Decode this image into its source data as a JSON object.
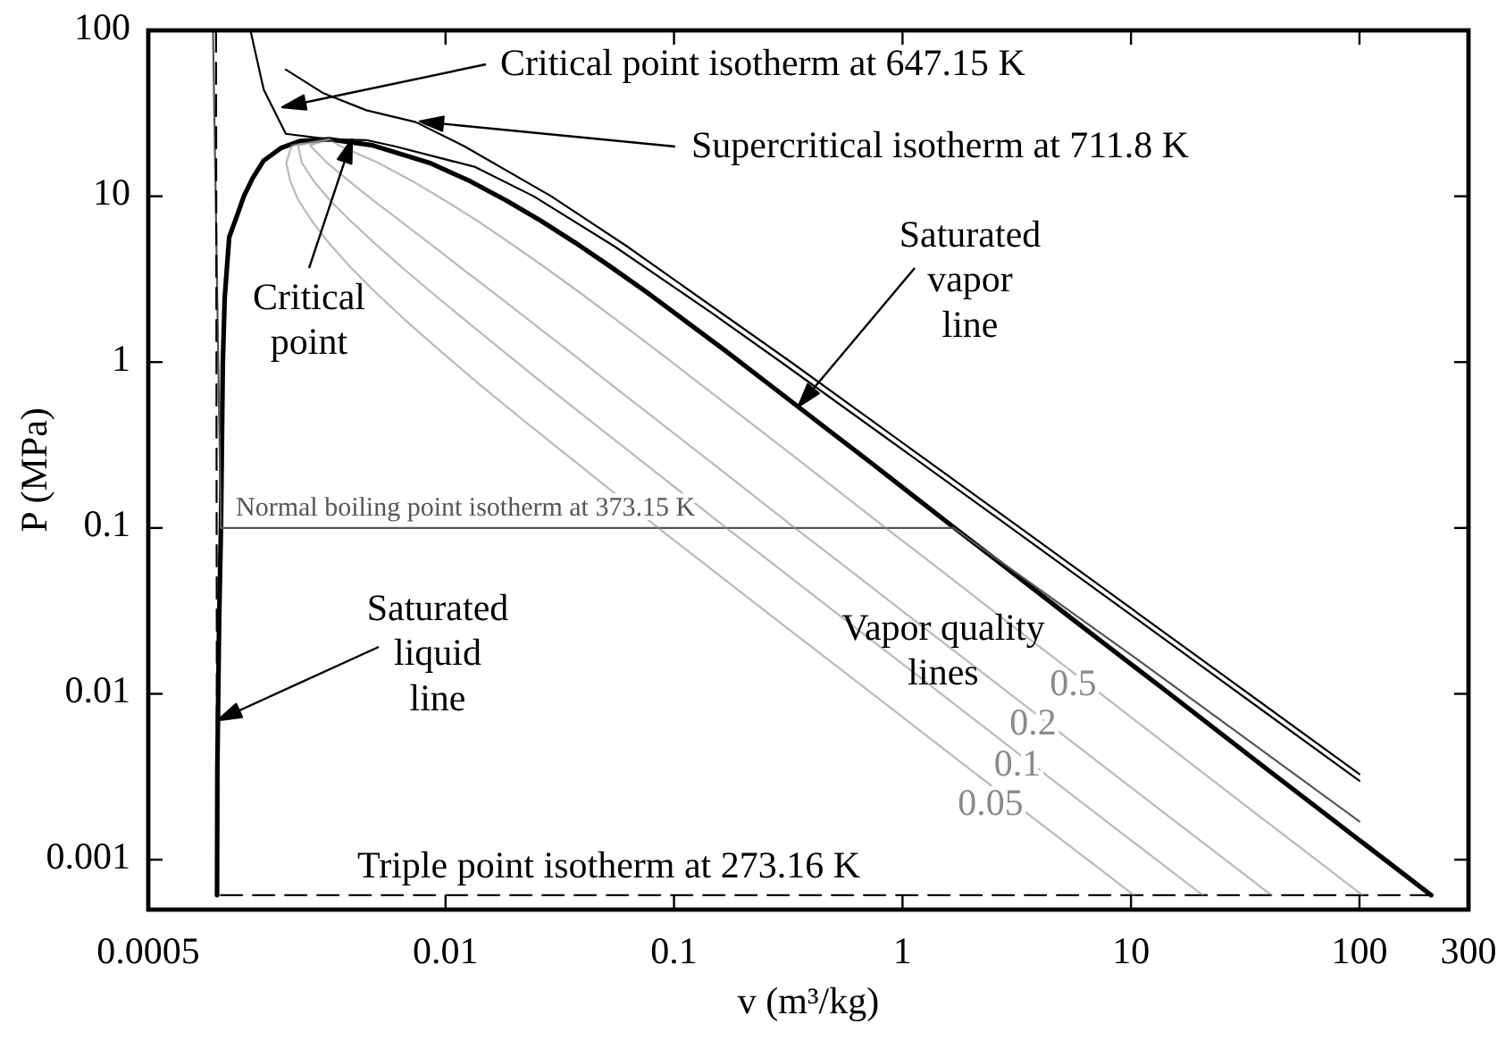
{
  "chart_data": {
    "type": "line",
    "xlabel": "v (m³/kg)",
    "ylabel": "P (MPa)",
    "log": "xy",
    "grid": false,
    "xlim": [
      0.0005,
      300
    ],
    "ylim": [
      0.0005,
      100
    ],
    "xticks": [
      0.0005,
      0.01,
      0.1,
      1,
      10,
      100,
      300
    ],
    "yticks": [
      0.001,
      0.01,
      0.1,
      1,
      10,
      100
    ],
    "series": [
      {
        "color": "#000000",
        "x": [
          0.001,
          0.001003,
          0.001021,
          0.00104,
          0.00106,
          0.00108,
          0.00113,
          0.00123,
          0.00131,
          0.00143,
          0.0016,
          0.0019,
          0.0023,
          0.0031,
          0.0048,
          0.0085,
          0.0128,
          0.0184,
          0.0262,
          0.037,
          0.0526,
          0.0758,
          0.111,
          0.168,
          0.261,
          0.425,
          0.731,
          1.673,
          2.645,
          5.74,
          13.98,
          39.1,
          69.7,
          130.4,
          206
        ],
        "values": [
          0.000611,
          0.00354,
          0.0272,
          0.1,
          1,
          2.44,
          5.66,
          7.8,
          10,
          12.8,
          16.4,
          19.5,
          21.5,
          22.06,
          20.27,
          15.9,
          12.34,
          9.45,
          7.1,
          5.24,
          3.77,
          2.64,
          1.79,
          1.17,
          0.733,
          0.437,
          0.246,
          0.101,
          0.0622,
          0.0272,
          0.0106,
          0.00354,
          0.00192,
          0.00099,
          0.000611
        ]
      },
      {
        "color": "#000000",
        "x": [
          0.0014,
          0.0016,
          0.002,
          0.0031,
          0.0045,
          0.006,
          0.0135,
          0.0243,
          0.0547,
          0.1446,
          0.2941,
          2.99,
          29.9,
          100
        ],
        "values": [
          100,
          44,
          23.8,
          22.06,
          21.8,
          20,
          15,
          10,
          5,
          2,
          1,
          0.1,
          0.01,
          0.00299
        ]
      },
      {
        "color": "#000000",
        "x": [
          0.002,
          0.0029,
          0.0045,
          0.0074,
          0.0121,
          0.029,
          0.0621,
          0.325,
          3.28,
          32.8,
          100
        ],
        "values": [
          58,
          42,
          33,
          28,
          20,
          10,
          5,
          1,
          0.1,
          0.01,
          0.00328
        ]
      },
      {
        "name": "Normal boiling point isotherm at 373.15 K",
        "color": "#555555",
        "x": [
          0.00096,
          0.00104,
          1.673,
          10,
          100
        ],
        "values": [
          100,
          0.1,
          0.1,
          0.0172,
          0.0017
        ]
      },
      {
        "name": "Triple point isotherm at 273.16 K",
        "color": "#000000",
        "line_style": "dashed",
        "x": [
          0.00099,
          0.001,
          206
        ],
        "values": [
          100,
          0.000611,
          0.000611
        ]
      },
      {
        "name": "0.05",
        "color": "#8a8a8a",
        "x": [
          0.0031,
          0.00212,
          0.00201,
          0.00209,
          0.00227,
          0.0026,
          0.00308,
          0.00381,
          0.00493,
          0.00667,
          0.00947,
          0.0141,
          0.0223,
          0.0376,
          0.0846,
          0.133,
          0.288,
          0.7,
          1.955,
          3.485,
          6.52,
          10.3
        ],
        "values": [
          22.06,
          20.27,
          15.9,
          12.34,
          9.45,
          7.1,
          5.24,
          3.77,
          2.64,
          1.79,
          1.17,
          0.733,
          0.437,
          0.246,
          0.101,
          0.0622,
          0.0272,
          0.0106,
          0.00354,
          0.00192,
          0.00099,
          0.000611
        ]
      },
      {
        "name": "0.1",
        "color": "#8a8a8a",
        "x": [
          0.0031,
          0.00226,
          0.00235,
          0.00265,
          0.00312,
          0.00384,
          0.00487,
          0.00638,
          0.00866,
          0.0122,
          0.0178,
          0.0271,
          0.0435,
          0.0741,
          0.168,
          0.2654,
          0.575,
          1.399,
          3.909,
          6.97,
          13.04,
          20.6
        ],
        "values": [
          22.06,
          20.27,
          15.9,
          12.34,
          9.45,
          7.1,
          5.24,
          3.77,
          2.64,
          1.79,
          1.17,
          0.733,
          0.437,
          0.246,
          0.101,
          0.0622,
          0.0272,
          0.0106,
          0.00354,
          0.00192,
          0.00099,
          0.000611
        ]
      },
      {
        "name": "0.2",
        "color": "#8a8a8a",
        "x": [
          0.0031,
          0.00255,
          0.00303,
          0.00378,
          0.00482,
          0.00633,
          0.00844,
          0.0115,
          0.0161,
          0.0232,
          0.0345,
          0.0531,
          0.0859,
          0.147,
          0.335,
          0.5298,
          1.149,
          2.797,
          7.816,
          13.94,
          26.08,
          41.2
        ],
        "values": [
          22.06,
          20.27,
          15.9,
          12.34,
          9.45,
          7.1,
          5.24,
          3.77,
          2.64,
          1.79,
          1.17,
          0.733,
          0.437,
          0.246,
          0.101,
          0.0622,
          0.0272,
          0.0106,
          0.00354,
          0.00192,
          0.00099,
          0.000611
        ]
      },
      {
        "name": "0.5",
        "color": "#8a8a8a",
        "x": [
          0.0031,
          0.00341,
          0.00508,
          0.00716,
          0.00992,
          0.0138,
          0.0191,
          0.0269,
          0.0385,
          0.0562,
          0.0844,
          0.131,
          0.213,
          0.366,
          0.837,
          1.323,
          2.87,
          6.99,
          19.54,
          34.85,
          65.2,
          103
        ],
        "values": [
          22.06,
          20.27,
          15.9,
          12.34,
          9.45,
          7.1,
          5.24,
          3.77,
          2.64,
          1.79,
          1.17,
          0.733,
          0.437,
          0.246,
          0.101,
          0.0622,
          0.0272,
          0.0106,
          0.00354,
          0.00192,
          0.00099,
          0.000611
        ]
      }
    ],
    "annotations": [
      "Critical point isotherm at 647.15 K",
      "Supercritical isotherm at 711.8 K",
      "Critical\npoint",
      {
        "text": "Saturated\nvapor\nline",
        "x": 0.35,
        "y": 0.54
      },
      "Saturated\nliquid\nline",
      "Vapor quality\nlines"
    ]
  }
}
